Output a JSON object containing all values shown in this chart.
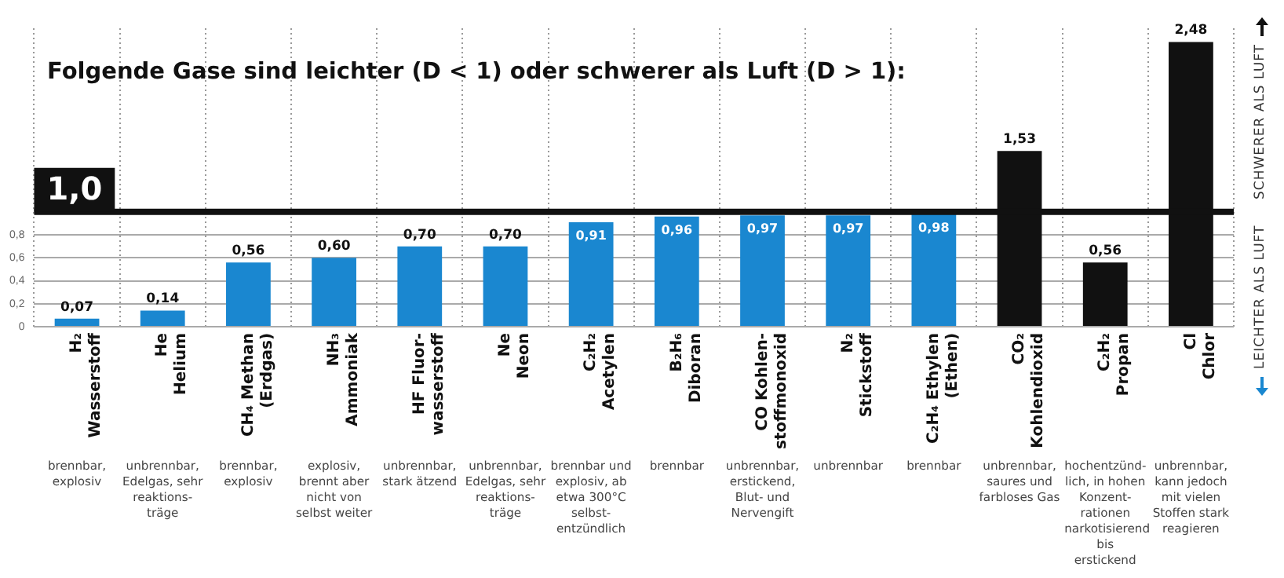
{
  "chart_data": {
    "type": "bar",
    "title": "Folgende Gase sind leichter (D < 1) oder schwerer als Luft (D > 1):",
    "categories": [
      "H₂\nWasserstoff",
      "He\nHelium",
      "CH₄ Methan\n(Erdgas)",
      "NH₃\nAmmoniak",
      "HF Fluor-\nwasserstoff",
      "Ne\nNeon",
      "C₂H₂\nAcetylen",
      "B₂H₆\nDiboran",
      "CO Kohlen-\nstoffmonoxid",
      "N₂\nStickstoff",
      "C₂H₄ Ethylen\n(Ethen)",
      "CO₂\nKohlendioxid",
      "C₂H₂\nPropan",
      "Cl\nChlor"
    ],
    "values": [
      0.07,
      0.14,
      0.56,
      0.6,
      0.7,
      0.7,
      0.91,
      0.96,
      0.97,
      0.97,
      0.98,
      1.53,
      0.56,
      2.48
    ],
    "value_labels": [
      "0,07",
      "0,14",
      "0,56",
      "0,60",
      "0,70",
      "0,70",
      "0,91",
      "0,96",
      "0,97",
      "0,97",
      "0,98",
      "1,53",
      "0,56",
      "2,48"
    ],
    "colors": [
      "#1a87d0",
      "#1a87d0",
      "#1a87d0",
      "#1a87d0",
      "#1a87d0",
      "#1a87d0",
      "#1a87d0",
      "#1a87d0",
      "#1a87d0",
      "#1a87d0",
      "#1a87d0",
      "#111111",
      "#111111",
      "#111111"
    ],
    "ylim": [
      0,
      2.6
    ],
    "yticks": [
      {
        "value": 0,
        "label": "0"
      },
      {
        "value": 0.2,
        "label": "0,2"
      },
      {
        "value": 0.4,
        "label": "0,4"
      },
      {
        "value": 0.6,
        "label": "0,6"
      },
      {
        "value": 0.8,
        "label": "0,8"
      }
    ],
    "ref_lines": [
      {
        "axis": "y",
        "value": 1,
        "label": "1,0",
        "color": "#111111"
      }
    ],
    "grid": true,
    "annotations": [
      "SCHWERER ALS LUFT",
      "LEICHTER ALS LUFT",
      "brennbar, explosiv",
      "unbrennbar, Edelgas, sehr reaktions-träge",
      "brennbar, explosiv",
      "explosiv, brennt aber nicht von selbst weiter",
      "unbrennbar, stark ätzend",
      "unbrennbar, Edelgas, sehr reaktions-träge",
      "brennbar und explosiv, ab etwa 300°C selbst-entzündlich",
      "brennbar",
      "unbrennbar, erstickend, Blut- und Nervengift",
      "unbrennbar",
      "brennbar",
      "unbrennbar, saures und farbloses Gas",
      "hochentzünd-lich, in hohen Konzent-rationen narkotisierend bis erstickend",
      "unbrennbar, kann jedoch mit vielen Stoffen stark reagieren"
    ]
  }
}
